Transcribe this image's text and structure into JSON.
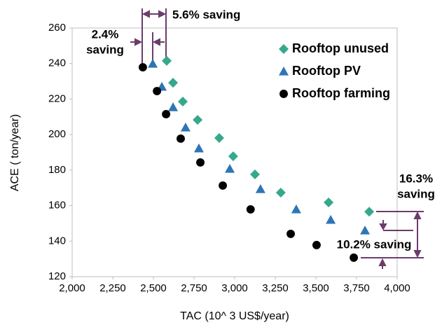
{
  "chart_data": {
    "type": "scatter",
    "x_label": "TAC (10^ 3 US$/year)",
    "y_label": "ACE ( ton/year)",
    "xlim": [
      2000,
      4000
    ],
    "xticks": [
      {
        "value": 2000,
        "label": "2,000"
      },
      {
        "value": 2250,
        "label": "2,250"
      },
      {
        "value": 2500,
        "label": "2,500"
      },
      {
        "value": 2750,
        "label": "2,750"
      },
      {
        "value": 3000,
        "label": "3,000"
      },
      {
        "value": 3250,
        "label": "3,250"
      },
      {
        "value": 3500,
        "label": "3,500"
      },
      {
        "value": 3750,
        "label": "3,750"
      },
      {
        "value": 4000,
        "label": "4,000"
      }
    ],
    "ylim": [
      120,
      260
    ],
    "yticks": [
      120,
      140,
      160,
      180,
      200,
      220,
      240,
      260
    ],
    "legend_position": "upper right",
    "series": [
      {
        "name": "Rooftop unused",
        "color": "#36a88c",
        "marker": "diamond",
        "x": [
          2582,
          2621,
          2681,
          2772,
          2905,
          2991,
          3125,
          3284,
          3578,
          3828
        ],
        "values": [
          241.5,
          229.2,
          218.6,
          208.3,
          198.1,
          187.8,
          177.6,
          167.3,
          161.8,
          156.6
        ]
      },
      {
        "name": "Rooftop PV",
        "color": "#2e75b6",
        "marker": "triangle",
        "x": [
          2496,
          2552,
          2621,
          2698,
          2780,
          2970,
          3159,
          3379,
          3591,
          3802
        ],
        "values": [
          239.9,
          226.9,
          215.4,
          204.0,
          192.2,
          180.7,
          169.3,
          157.9,
          152.0,
          146.0
        ]
      },
      {
        "name": "Rooftop farming",
        "color": "#000000",
        "marker": "circle",
        "x": [
          2435,
          2522,
          2578,
          2668,
          2789,
          2927,
          3098,
          3345,
          3504,
          3733
        ],
        "values": [
          237.9,
          224.5,
          211.5,
          197.7,
          184.3,
          171.3,
          157.9,
          144.1,
          137.8,
          130.7
        ]
      }
    ],
    "annotations": [
      {
        "lines": [
          "5.6% saving"
        ]
      },
      {
        "lines": [
          "2.4%",
          "saving"
        ]
      },
      {
        "lines": [
          "16.3%",
          "saving"
        ]
      },
      {
        "lines": [
          "10.2% saving"
        ]
      }
    ]
  }
}
